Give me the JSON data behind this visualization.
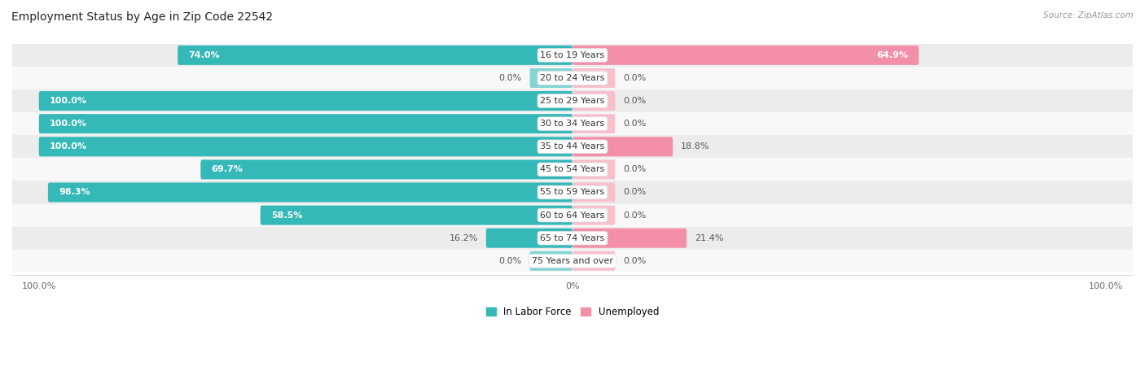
{
  "title": "Employment Status by Age in Zip Code 22542",
  "source": "Source: ZipAtlas.com",
  "categories": [
    "16 to 19 Years",
    "20 to 24 Years",
    "25 to 29 Years",
    "30 to 34 Years",
    "35 to 44 Years",
    "45 to 54 Years",
    "55 to 59 Years",
    "60 to 64 Years",
    "65 to 74 Years",
    "75 Years and over"
  ],
  "in_labor_force": [
    74.0,
    0.0,
    100.0,
    100.0,
    100.0,
    69.7,
    98.3,
    58.5,
    16.2,
    0.0
  ],
  "unemployed": [
    64.9,
    0.0,
    0.0,
    0.0,
    18.8,
    0.0,
    0.0,
    0.0,
    21.4,
    0.0
  ],
  "color_labor": "#35B8B8",
  "color_labor_light": "#85D4D4",
  "color_unemployed": "#F48FAA",
  "color_unemployed_light": "#F8C0CC",
  "color_bg_row_odd": "#ECECEC",
  "color_bg_row_even": "#F8F8F8",
  "title_fontsize": 10,
  "label_fontsize": 8,
  "bar_height": 0.45,
  "stub_value": 8.0,
  "legend_labor": "In Labor Force",
  "legend_unemployed": "Unemployed"
}
